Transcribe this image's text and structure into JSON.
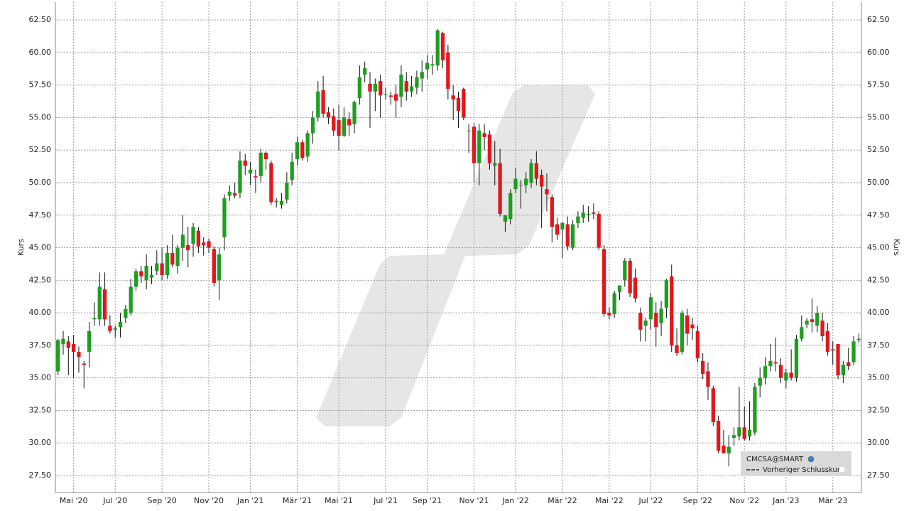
{
  "chart_data": {
    "type": "candlestick",
    "ylabel": "Kurs",
    "ylim": [
      26.19,
      63.87
    ],
    "yticks": [
      {
        "value": 27.5,
        "label": "27.50"
      },
      {
        "value": 30,
        "label": "30.00"
      },
      {
        "value": 32.5,
        "label": "32.50"
      },
      {
        "value": 35,
        "label": "35.00"
      },
      {
        "value": 37.5,
        "label": "37.50"
      },
      {
        "value": 40,
        "label": "40.00"
      },
      {
        "value": 42.5,
        "label": "42.50"
      },
      {
        "value": 45,
        "label": "45.00"
      },
      {
        "value": 47.5,
        "label": "47.50"
      },
      {
        "value": 50,
        "label": "50.00"
      },
      {
        "value": 52.5,
        "label": "52.50"
      },
      {
        "value": 55,
        "label": "55.00"
      },
      {
        "value": 57.5,
        "label": "57.50"
      },
      {
        "value": 60,
        "label": "60.00"
      },
      {
        "value": 62.5,
        "label": "62.50"
      }
    ],
    "grid": true,
    "categories": [
      null,
      null,
      null,
      "Mai '20",
      null,
      null,
      null,
      null,
      null,
      null,
      null,
      "Jul '20",
      null,
      null,
      null,
      null,
      null,
      null,
      null,
      null,
      "Sep '20",
      null,
      null,
      null,
      null,
      null,
      null,
      null,
      null,
      "Nov '20",
      null,
      null,
      null,
      null,
      null,
      null,
      null,
      "Jan '21",
      null,
      null,
      null,
      null,
      null,
      null,
      null,
      null,
      "Mär '21",
      null,
      null,
      null,
      null,
      null,
      null,
      null,
      "Mai '21",
      null,
      null,
      null,
      null,
      null,
      null,
      null,
      null,
      "Jul '21",
      null,
      null,
      null,
      null,
      null,
      null,
      null,
      "Sep '21",
      null,
      null,
      null,
      null,
      null,
      null,
      null,
      null,
      "Nov '21",
      null,
      null,
      null,
      null,
      null,
      null,
      null,
      "Jan '22",
      null,
      null,
      null,
      null,
      null,
      null,
      null,
      null,
      "Mär '22",
      null,
      null,
      null,
      null,
      null,
      null,
      null,
      null,
      "Mai '22",
      null,
      null,
      null,
      null,
      null,
      null,
      null,
      "Jul '22",
      null,
      null,
      null,
      null,
      null,
      null,
      null,
      null,
      "Sep '22",
      null,
      null,
      null,
      null,
      null,
      null,
      null,
      null,
      "Nov '22",
      null,
      null,
      null,
      null,
      null,
      null,
      null,
      "Jan '23",
      null,
      null,
      null,
      null,
      null,
      null,
      null,
      null,
      "Mär '23",
      null,
      null,
      null,
      null,
      null
    ],
    "series": [
      {
        "name": "CMCSA@SMART",
        "up_color": "#1e9e1e",
        "down_color": "#e3161c",
        "values": [
          [
            35.5,
            38.0,
            35.2,
            37.9
          ],
          [
            37.6,
            38.6,
            36.8,
            38.0
          ],
          [
            37.8,
            38.2,
            35.2,
            37.3
          ],
          [
            37.6,
            38.3,
            35.0,
            37.0
          ],
          [
            37.0,
            37.4,
            35.4,
            36.6
          ],
          [
            36.1,
            36.3,
            34.2,
            36.0
          ],
          [
            37.0,
            39.3,
            35.8,
            38.6
          ],
          [
            39.5,
            40.8,
            39.0,
            39.6
          ],
          [
            39.5,
            43.1,
            39.0,
            42.0
          ],
          [
            41.8,
            43.1,
            39.0,
            39.5
          ],
          [
            39.0,
            39.8,
            38.4,
            38.6
          ],
          [
            38.7,
            39.0,
            38.1,
            38.8
          ],
          [
            38.9,
            40.0,
            38.1,
            39.3
          ],
          [
            39.6,
            40.6,
            39.2,
            40.3
          ],
          [
            40.0,
            42.6,
            39.8,
            42.0
          ],
          [
            42.0,
            43.4,
            41.7,
            43.2
          ],
          [
            43.2,
            43.6,
            42.3,
            42.8
          ],
          [
            42.5,
            44.5,
            41.8,
            43.6
          ],
          [
            42.7,
            43.6,
            42.2,
            42.9
          ],
          [
            43.2,
            44.8,
            42.9,
            43.8
          ],
          [
            43.8,
            45.0,
            42.5,
            42.9
          ],
          [
            42.9,
            45.2,
            42.6,
            44.6
          ],
          [
            44.6,
            46.0,
            43.5,
            43.7
          ],
          [
            43.6,
            45.2,
            43.0,
            45.0
          ],
          [
            45.0,
            47.5,
            44.0,
            46.0
          ],
          [
            45.2,
            46.6,
            43.5,
            44.8
          ],
          [
            45.3,
            46.9,
            44.3,
            46.6
          ],
          [
            46.3,
            46.6,
            44.6,
            45.1
          ],
          [
            45.4,
            45.8,
            44.4,
            45.2
          ],
          [
            45.5,
            45.7,
            44.6,
            45.0
          ],
          [
            44.9,
            45.1,
            42.0,
            42.3
          ],
          [
            42.5,
            45.0,
            41.0,
            44.5
          ],
          [
            45.8,
            49.1,
            44.8,
            48.8
          ],
          [
            49.0,
            49.8,
            48.6,
            49.3
          ],
          [
            49.2,
            50.0,
            48.8,
            49.0
          ],
          [
            49.2,
            52.4,
            48.8,
            51.7
          ],
          [
            51.7,
            52.2,
            50.6,
            51.3
          ],
          [
            50.7,
            51.6,
            49.8,
            51.0
          ],
          [
            50.5,
            51.0,
            49.2,
            50.4
          ],
          [
            50.5,
            52.6,
            50.0,
            52.3
          ],
          [
            52.3,
            52.4,
            51.0,
            51.8
          ],
          [
            51.5,
            51.7,
            48.3,
            48.5
          ],
          [
            48.5,
            48.8,
            48.1,
            48.6
          ],
          [
            48.3,
            49.2,
            48.0,
            48.6
          ],
          [
            48.7,
            50.8,
            48.4,
            50.0
          ],
          [
            50.2,
            52.3,
            49.8,
            51.6
          ],
          [
            51.8,
            53.5,
            51.3,
            53.1
          ],
          [
            53.1,
            53.3,
            51.7,
            51.9
          ],
          [
            52.0,
            54.0,
            51.6,
            53.8
          ],
          [
            53.8,
            55.5,
            53.0,
            55.0
          ],
          [
            55.0,
            57.8,
            54.7,
            57.0
          ],
          [
            57.1,
            58.2,
            55.0,
            55.3
          ],
          [
            55.4,
            55.8,
            54.5,
            55.0
          ],
          [
            55.1,
            55.7,
            53.6,
            54.0
          ],
          [
            54.8,
            56.0,
            52.5,
            53.6
          ],
          [
            53.6,
            55.8,
            53.5,
            55.0
          ],
          [
            54.9,
            55.4,
            53.6,
            54.4
          ],
          [
            54.5,
            56.3,
            53.8,
            56.2
          ],
          [
            56.5,
            59.0,
            56.0,
            58.1
          ],
          [
            58.3,
            59.3,
            57.7,
            58.8
          ],
          [
            57.6,
            58.5,
            54.2,
            57.0
          ],
          [
            57.0,
            58.0,
            55.5,
            57.6
          ],
          [
            57.8,
            58.3,
            55.0,
            56.7
          ],
          [
            56.8,
            57.3,
            56.4,
            56.8
          ],
          [
            56.7,
            57.0,
            56.0,
            56.6
          ],
          [
            56.8,
            57.5,
            55.0,
            56.3
          ],
          [
            56.6,
            59.0,
            55.8,
            58.3
          ],
          [
            57.8,
            58.5,
            56.3,
            57.0
          ],
          [
            57.0,
            58.2,
            56.6,
            57.4
          ],
          [
            57.3,
            58.6,
            56.8,
            58.1
          ],
          [
            58.0,
            59.4,
            57.0,
            58.5
          ],
          [
            58.7,
            59.8,
            58.0,
            59.2
          ],
          [
            59.0,
            59.8,
            58.3,
            59.1
          ],
          [
            59.0,
            61.8,
            58.6,
            61.7
          ],
          [
            61.5,
            61.6,
            58.8,
            59.4
          ],
          [
            60.0,
            60.6,
            56.4,
            57.2
          ],
          [
            56.7,
            57.5,
            54.8,
            56.4
          ],
          [
            56.5,
            57.0,
            54.2,
            55.5
          ],
          [
            57.2,
            57.3,
            54.8,
            55.0
          ],
          [
            54.0,
            54.5,
            52.3,
            54.0
          ],
          [
            54.3,
            54.6,
            50.0,
            51.5
          ],
          [
            51.5,
            54.5,
            49.8,
            54.0
          ],
          [
            53.8,
            54.5,
            52.5,
            53.5
          ],
          [
            53.7,
            54.0,
            51.0,
            51.5
          ],
          [
            51.3,
            53.2,
            49.8,
            51.5
          ],
          [
            51.5,
            52.6,
            47.4,
            47.6
          ],
          [
            47.0,
            47.5,
            46.2,
            47.5
          ],
          [
            47.2,
            49.5,
            46.8,
            49.2
          ],
          [
            49.5,
            51.1,
            49.2,
            50.3
          ],
          [
            49.8,
            50.2,
            48.0,
            49.8
          ],
          [
            49.8,
            50.8,
            49.2,
            50.3
          ],
          [
            50.0,
            51.8,
            49.6,
            51.5
          ],
          [
            51.5,
            52.4,
            49.8,
            50.3
          ],
          [
            50.6,
            51.0,
            46.5,
            49.7
          ],
          [
            49.5,
            50.7,
            47.8,
            49.1
          ],
          [
            48.9,
            49.1,
            45.4,
            46.6
          ],
          [
            46.8,
            47.3,
            45.6,
            46.0
          ],
          [
            46.4,
            47.0,
            44.2,
            46.9
          ],
          [
            46.8,
            47.4,
            44.8,
            45.1
          ],
          [
            45.0,
            47.1,
            44.8,
            46.8
          ],
          [
            46.9,
            47.8,
            46.5,
            47.4
          ],
          [
            47.3,
            48.3,
            46.9,
            47.7
          ],
          [
            47.6,
            48.2,
            47.0,
            47.6
          ],
          [
            47.7,
            48.4,
            47.2,
            47.6
          ],
          [
            47.6,
            47.8,
            44.8,
            45.0
          ],
          [
            44.9,
            45.2,
            39.7,
            39.9
          ],
          [
            40.0,
            40.4,
            39.5,
            39.8
          ],
          [
            39.9,
            41.7,
            39.6,
            41.5
          ],
          [
            41.6,
            42.1,
            41.0,
            42.1
          ],
          [
            42.5,
            44.2,
            42.0,
            44.0
          ],
          [
            44.0,
            44.2,
            41.2,
            41.5
          ],
          [
            42.7,
            43.4,
            40.8,
            41.1
          ],
          [
            40.0,
            40.4,
            37.8,
            38.7
          ],
          [
            39.0,
            39.6,
            37.8,
            39.4
          ],
          [
            39.5,
            41.5,
            38.7,
            41.2
          ],
          [
            40.0,
            40.8,
            37.4,
            38.9
          ],
          [
            39.2,
            40.9,
            38.2,
            40.3
          ],
          [
            40.4,
            42.6,
            39.6,
            42.5
          ],
          [
            42.8,
            43.7,
            37.0,
            37.5
          ],
          [
            37.5,
            38.8,
            36.7,
            36.9
          ],
          [
            37.0,
            40.2,
            36.8,
            40.0
          ],
          [
            39.8,
            40.3,
            37.5,
            38.4
          ],
          [
            39.1,
            39.6,
            37.9,
            38.8
          ],
          [
            38.6,
            39.0,
            36.2,
            36.5
          ],
          [
            36.3,
            36.9,
            34.9,
            35.3
          ],
          [
            35.5,
            36.2,
            33.3,
            34.3
          ],
          [
            34.2,
            34.4,
            31.3,
            31.6
          ],
          [
            31.7,
            32.1,
            29.2,
            29.4
          ],
          [
            29.8,
            31.0,
            29.2,
            29.2
          ],
          [
            29.2,
            30.6,
            28.2,
            29.7
          ],
          [
            30.4,
            31.2,
            29.8,
            30.6
          ],
          [
            30.5,
            34.3,
            30.2,
            31.2
          ],
          [
            31.2,
            32.8,
            30.2,
            30.3
          ],
          [
            30.5,
            33.2,
            30.2,
            31.0
          ],
          [
            30.8,
            34.6,
            30.6,
            34.3
          ],
          [
            34.4,
            35.8,
            33.5,
            35.0
          ],
          [
            35.0,
            36.6,
            34.5,
            35.9
          ],
          [
            35.9,
            37.6,
            35.5,
            36.3
          ],
          [
            36.2,
            38.1,
            35.5,
            36.1
          ],
          [
            36.0,
            36.5,
            34.6,
            35.0
          ],
          [
            34.8,
            35.7,
            34.2,
            35.4
          ],
          [
            35.4,
            37.2,
            34.8,
            35.0
          ],
          [
            35.0,
            38.3,
            34.7,
            38.0
          ],
          [
            38.0,
            39.8,
            37.8,
            38.9
          ],
          [
            39.1,
            39.6,
            38.8,
            39.4
          ],
          [
            39.5,
            41.1,
            38.5,
            39.3
          ],
          [
            39.0,
            40.5,
            38.5,
            40.0
          ],
          [
            39.4,
            40.0,
            37.8,
            38.2
          ],
          [
            38.6,
            39.2,
            36.7,
            37.0
          ],
          [
            37.2,
            37.8,
            36.0,
            37.1
          ],
          [
            37.6,
            37.6,
            34.9,
            35.2
          ],
          [
            35.2,
            36.3,
            34.6,
            36.0
          ],
          [
            36.2,
            37.3,
            35.6,
            35.9
          ],
          [
            36.2,
            38.2,
            36.0,
            37.8
          ],
          [
            37.9,
            38.4,
            37.7,
            38.0
          ]
        ]
      }
    ],
    "reference_line": {
      "name": "Vorheriger Schlusskurs",
      "color": "#222222"
    }
  }
}
